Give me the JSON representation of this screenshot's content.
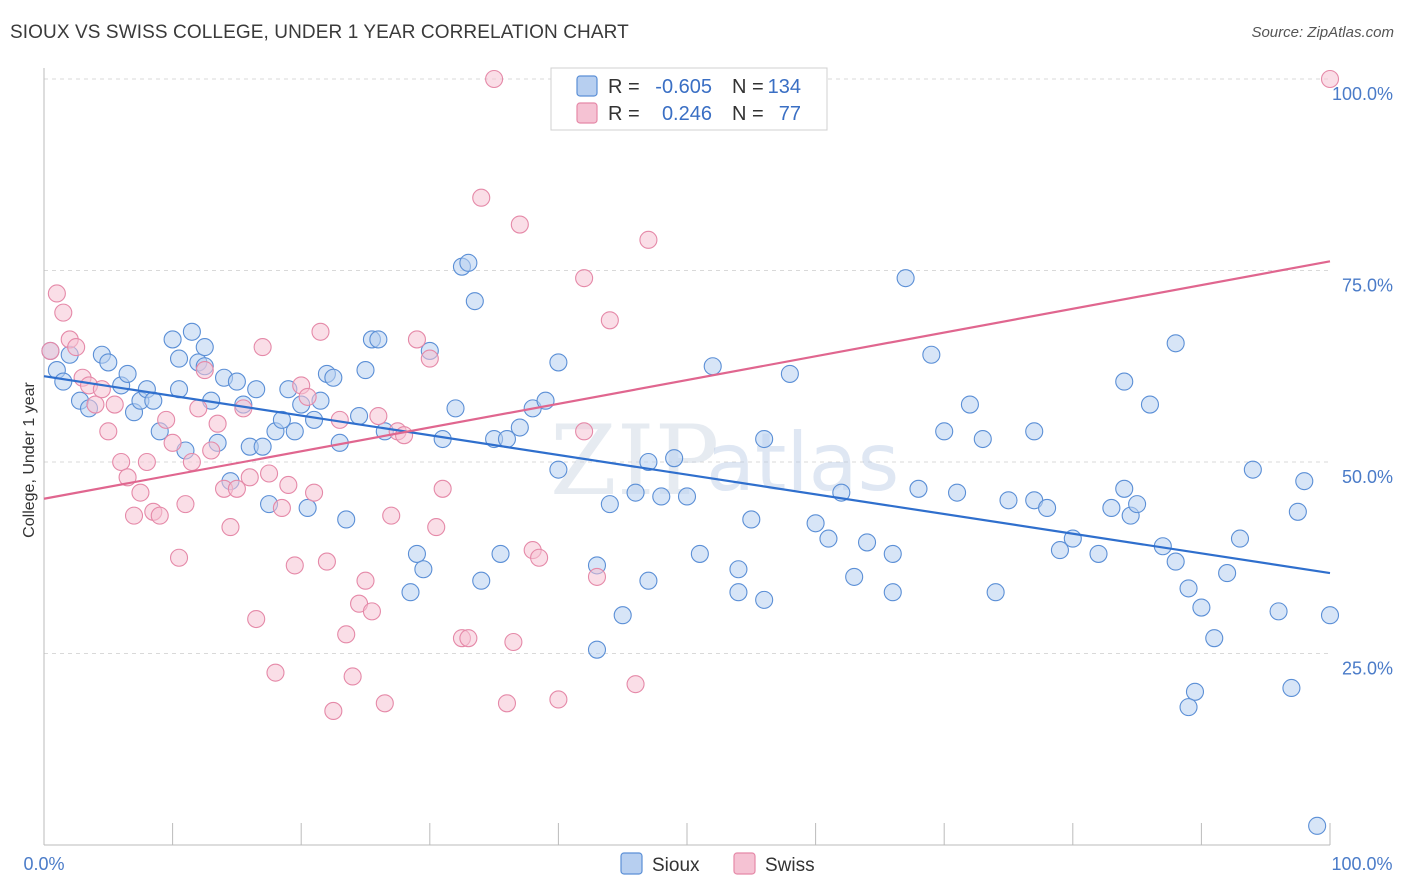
{
  "title": "SIOUX VS SWISS COLLEGE, UNDER 1 YEAR CORRELATION CHART",
  "source": "Source: ZipAtlas.com",
  "colors": {
    "sioux": "#5b8fd6",
    "sioux_fill": "#b7cff0",
    "sioux_line": "#2f6fcd",
    "swiss": "#e589a8",
    "swiss_fill": "#f5c2d3",
    "swiss_line": "#e0668f",
    "tick": "#4a7bc8",
    "grid": "#d9d9d9"
  },
  "legend": {
    "r_label": "R =",
    "n_label": "N =",
    "sioux_r": "-0.605",
    "sioux_n": "134",
    "swiss_r": "0.246",
    "swiss_n": "77"
  },
  "bottom_legend": {
    "sioux": "Sioux",
    "swiss": "Swiss"
  },
  "watermark": {
    "zip": "ZIP",
    "atlas": "atlas"
  },
  "chart_data": {
    "type": "scatter",
    "title": "SIOUX VS SWISS COLLEGE, UNDER 1 YEAR CORRELATION CHART",
    "xlabel": "",
    "ylabel": "College, Under 1 year",
    "xlim": [
      0,
      100
    ],
    "ylim": [
      0,
      100
    ],
    "x_tick_labels": [
      "0.0%",
      "100.0%"
    ],
    "y_ticks": [
      25,
      50,
      75,
      100
    ],
    "y_tick_labels": [
      "25.0%",
      "50.0%",
      "75.0%",
      "100.0%"
    ],
    "grid": true,
    "series": [
      {
        "name": "Sioux",
        "r": -0.605,
        "n": 134,
        "trend": {
          "x": [
            0,
            100
          ],
          "y": [
            61.2,
            35.5
          ]
        },
        "points": [
          [
            0.5,
            64.5
          ],
          [
            1,
            62
          ],
          [
            1.5,
            60.5
          ],
          [
            2,
            64
          ],
          [
            2.8,
            58
          ],
          [
            3.5,
            57
          ],
          [
            4.5,
            64
          ],
          [
            5,
            63
          ],
          [
            6,
            60
          ],
          [
            6.5,
            61.5
          ],
          [
            7,
            56.5
          ],
          [
            7.5,
            58
          ],
          [
            8,
            59.5
          ],
          [
            8.5,
            58
          ],
          [
            9,
            54
          ],
          [
            10,
            66
          ],
          [
            10.5,
            63.5
          ],
          [
            10.5,
            59.5
          ],
          [
            11,
            51.5
          ],
          [
            11.5,
            67
          ],
          [
            12,
            63
          ],
          [
            12.5,
            62.5
          ],
          [
            12.5,
            65
          ],
          [
            13,
            58
          ],
          [
            13.5,
            52.5
          ],
          [
            14,
            61
          ],
          [
            14.5,
            47.5
          ],
          [
            15,
            60.5
          ],
          [
            15.5,
            57.5
          ],
          [
            16,
            52
          ],
          [
            16.5,
            59.5
          ],
          [
            17,
            52
          ],
          [
            17.5,
            44.5
          ],
          [
            18,
            54
          ],
          [
            18.5,
            55.5
          ],
          [
            19,
            59.5
          ],
          [
            19.5,
            54
          ],
          [
            20,
            57.5
          ],
          [
            20.5,
            44
          ],
          [
            21,
            55.5
          ],
          [
            21.5,
            58
          ],
          [
            22,
            61.5
          ],
          [
            22.5,
            61
          ],
          [
            23,
            52.5
          ],
          [
            23.5,
            42.5
          ],
          [
            24.5,
            56
          ],
          [
            25,
            62
          ],
          [
            25.5,
            66
          ],
          [
            26,
            66
          ],
          [
            26.5,
            54
          ],
          [
            29,
            38
          ],
          [
            29.5,
            36
          ],
          [
            28.5,
            33
          ],
          [
            30,
            64.5
          ],
          [
            31,
            53
          ],
          [
            32,
            57
          ],
          [
            32.5,
            75.5
          ],
          [
            33,
            76
          ],
          [
            33.5,
            71
          ],
          [
            34,
            34.5
          ],
          [
            35,
            53
          ],
          [
            35.5,
            38
          ],
          [
            36,
            53
          ],
          [
            37,
            54.5
          ],
          [
            38,
            57
          ],
          [
            39,
            58
          ],
          [
            40,
            49
          ],
          [
            40,
            63
          ],
          [
            43,
            36.5
          ],
          [
            44,
            44.5
          ],
          [
            43,
            25.5
          ],
          [
            45,
            30
          ],
          [
            46,
            46
          ],
          [
            47,
            50
          ],
          [
            47,
            34.5
          ],
          [
            48,
            45.5
          ],
          [
            49,
            50.5
          ],
          [
            50,
            45.5
          ],
          [
            51,
            38
          ],
          [
            52,
            62.5
          ],
          [
            54,
            33
          ],
          [
            54,
            36
          ],
          [
            55,
            42.5
          ],
          [
            56,
            32
          ],
          [
            56,
            53
          ],
          [
            58,
            61.5
          ],
          [
            60,
            42
          ],
          [
            61,
            40
          ],
          [
            62,
            46
          ],
          [
            63,
            35
          ],
          [
            64,
            39.5
          ],
          [
            66,
            33
          ],
          [
            66,
            38
          ],
          [
            67,
            74
          ],
          [
            68,
            46.5
          ],
          [
            69,
            64
          ],
          [
            70,
            54
          ],
          [
            71,
            46
          ],
          [
            72,
            57.5
          ],
          [
            73,
            53
          ],
          [
            74,
            33
          ],
          [
            75,
            45
          ],
          [
            77,
            45
          ],
          [
            77,
            54
          ],
          [
            78,
            44
          ],
          [
            79,
            38.5
          ],
          [
            80,
            40
          ],
          [
            82,
            38
          ],
          [
            83,
            44
          ],
          [
            84,
            60.5
          ],
          [
            84,
            46.5
          ],
          [
            84.5,
            43
          ],
          [
            85,
            44.5
          ],
          [
            86,
            57.5
          ],
          [
            87,
            39
          ],
          [
            88,
            37
          ],
          [
            88,
            65.5
          ],
          [
            89,
            33.5
          ],
          [
            90,
            31
          ],
          [
            91,
            27
          ],
          [
            89.5,
            20
          ],
          [
            89,
            18
          ],
          [
            92,
            35.5
          ],
          [
            93,
            40
          ],
          [
            94,
            49
          ],
          [
            96,
            30.5
          ],
          [
            97,
            20.5
          ],
          [
            97.5,
            43.5
          ],
          [
            98,
            47.5
          ],
          [
            99,
            2.5
          ],
          [
            100,
            30
          ]
        ]
      },
      {
        "name": "Swiss",
        "r": 0.246,
        "n": 77,
        "trend": {
          "x": [
            0,
            100
          ],
          "y": [
            45.2,
            76.2
          ]
        },
        "points": [
          [
            0.5,
            64.5
          ],
          [
            1,
            72
          ],
          [
            1.5,
            69.5
          ],
          [
            2,
            66
          ],
          [
            2.5,
            65
          ],
          [
            3,
            61
          ],
          [
            3.5,
            60
          ],
          [
            4,
            57.5
          ],
          [
            4.5,
            59.5
          ],
          [
            5,
            54
          ],
          [
            5.5,
            57.5
          ],
          [
            6,
            50
          ],
          [
            6.5,
            48
          ],
          [
            7,
            43
          ],
          [
            7.5,
            46
          ],
          [
            8,
            50
          ],
          [
            8.5,
            43.5
          ],
          [
            9,
            43
          ],
          [
            9.5,
            55.5
          ],
          [
            10,
            52.5
          ],
          [
            10.5,
            37.5
          ],
          [
            11,
            44.5
          ],
          [
            11.5,
            50
          ],
          [
            12,
            57
          ],
          [
            12.5,
            62
          ],
          [
            13,
            51.5
          ],
          [
            13.5,
            55
          ],
          [
            14,
            46.5
          ],
          [
            14.5,
            41.5
          ],
          [
            15,
            46.5
          ],
          [
            15.5,
            57
          ],
          [
            16,
            48
          ],
          [
            16.5,
            29.5
          ],
          [
            17,
            65
          ],
          [
            17.5,
            48.5
          ],
          [
            18,
            22.5
          ],
          [
            18.5,
            44
          ],
          [
            19,
            47
          ],
          [
            20,
            60
          ],
          [
            20.5,
            58.5
          ],
          [
            19.5,
            36.5
          ],
          [
            21,
            46
          ],
          [
            21.5,
            67
          ],
          [
            22,
            37
          ],
          [
            22.5,
            17.5
          ],
          [
            23,
            55.5
          ],
          [
            23.5,
            27.5
          ],
          [
            24,
            22
          ],
          [
            24.5,
            31.5
          ],
          [
            25,
            34.5
          ],
          [
            25.5,
            30.5
          ],
          [
            26,
            56
          ],
          [
            26.5,
            18.5
          ],
          [
            27,
            43
          ],
          [
            27.5,
            54
          ],
          [
            28,
            53.5
          ],
          [
            29,
            66
          ],
          [
            30,
            63.5
          ],
          [
            30.5,
            41.5
          ],
          [
            31,
            46.5
          ],
          [
            32.5,
            27
          ],
          [
            33,
            27
          ],
          [
            34,
            84.5
          ],
          [
            35,
            100
          ],
          [
            36,
            18.5
          ],
          [
            37,
            81
          ],
          [
            38,
            38.5
          ],
          [
            38.5,
            37.5
          ],
          [
            40,
            19
          ],
          [
            42,
            74
          ],
          [
            43,
            35
          ],
          [
            44,
            68.5
          ],
          [
            46,
            21
          ],
          [
            47,
            79
          ],
          [
            100,
            100
          ],
          [
            36.5,
            26.5
          ],
          [
            42,
            54
          ]
        ]
      }
    ]
  }
}
